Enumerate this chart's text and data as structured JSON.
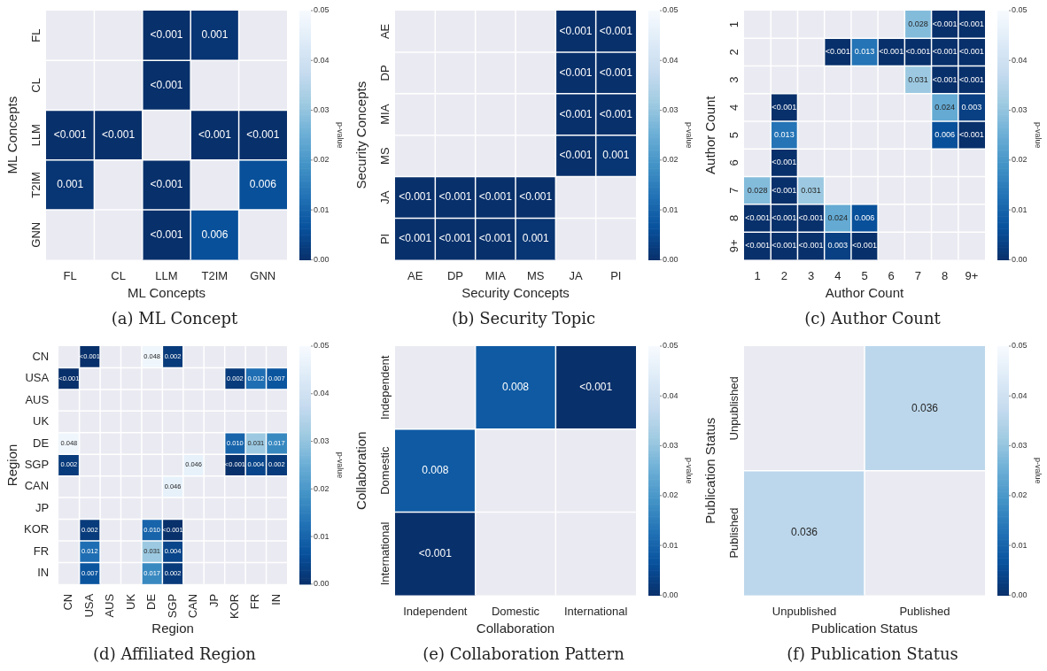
{
  "chart_data": [
    {
      "type": "heatmap",
      "title": "(a) ML Concept",
      "xlabel": "ML Concepts",
      "ylabel": "ML Concepts",
      "categories": [
        "FL",
        "CL",
        "LLM",
        "T2IM",
        "GNN"
      ],
      "y_categories": [
        "FL",
        "CL",
        "LLM",
        "T2IM",
        "GNN"
      ],
      "cells": [
        [
          null,
          null,
          0,
          0.001,
          null
        ],
        [
          null,
          null,
          0,
          null,
          null
        ],
        [
          0,
          0,
          null,
          0,
          0
        ],
        [
          0.001,
          null,
          0,
          null,
          0.006
        ],
        [
          null,
          null,
          0,
          0.006,
          null
        ]
      ],
      "cell_labels": [
        [
          null,
          null,
          "<0.001",
          "0.001",
          null
        ],
        [
          null,
          null,
          "<0.001",
          null,
          null
        ],
        [
          "<0.001",
          "<0.001",
          null,
          "<0.001",
          "<0.001"
        ],
        [
          "0.001",
          null,
          "<0.001",
          null,
          "0.006"
        ],
        [
          null,
          null,
          "<0.001",
          "0.006",
          null
        ]
      ],
      "clim": [
        0,
        0.05
      ],
      "cticks": [
        {
          "value": 0,
          "label": "0.00"
        },
        {
          "value": 0.01,
          "label": "0.01"
        },
        {
          "value": 0.02,
          "label": "0.02"
        },
        {
          "value": 0.03,
          "label": "0.03"
        },
        {
          "value": 0.04,
          "label": "0.04"
        },
        {
          "value": 0.05,
          "label": "0.05"
        }
      ],
      "clabel": "p-value"
    },
    {
      "type": "heatmap",
      "title": "(b) Security Topic",
      "xlabel": "Security Concepts",
      "ylabel": "Security Concepts",
      "categories": [
        "AE",
        "DP",
        "MIA",
        "MS",
        "JA",
        "PI"
      ],
      "y_categories": [
        "AE",
        "DP",
        "MIA",
        "MS",
        "JA",
        "PI"
      ],
      "cells": [
        [
          null,
          null,
          null,
          null,
          0,
          0
        ],
        [
          null,
          null,
          null,
          null,
          0,
          0
        ],
        [
          null,
          null,
          null,
          null,
          0,
          0
        ],
        [
          null,
          null,
          null,
          null,
          0,
          0.001
        ],
        [
          0,
          0,
          0,
          0,
          null,
          null
        ],
        [
          0,
          0,
          0,
          0.001,
          null,
          null
        ]
      ],
      "cell_labels": [
        [
          null,
          null,
          null,
          null,
          "<0.001",
          "<0.001"
        ],
        [
          null,
          null,
          null,
          null,
          "<0.001",
          "<0.001"
        ],
        [
          null,
          null,
          null,
          null,
          "<0.001",
          "<0.001"
        ],
        [
          null,
          null,
          null,
          null,
          "<0.001",
          "0.001"
        ],
        [
          "<0.001",
          "<0.001",
          "<0.001",
          "<0.001",
          null,
          null
        ],
        [
          "<0.001",
          "<0.001",
          "<0.001",
          "0.001",
          null,
          null
        ]
      ],
      "clim": [
        0,
        0.05
      ],
      "cticks": [
        {
          "value": 0,
          "label": "0.00"
        },
        {
          "value": 0.01,
          "label": "0.01"
        },
        {
          "value": 0.02,
          "label": "0.02"
        },
        {
          "value": 0.03,
          "label": "0.03"
        },
        {
          "value": 0.04,
          "label": "0.04"
        },
        {
          "value": 0.05,
          "label": "0.05"
        }
      ],
      "clabel": "p-value"
    },
    {
      "type": "heatmap",
      "title": "(c) Author Count",
      "xlabel": "Author Count",
      "ylabel": "Author Count",
      "categories": [
        "1",
        "2",
        "3",
        "4",
        "5",
        "6",
        "7",
        "8",
        "9+"
      ],
      "y_categories": [
        "1",
        "2",
        "3",
        "4",
        "5",
        "6",
        "7",
        "8",
        "9+"
      ],
      "cells": [
        [
          null,
          null,
          null,
          null,
          null,
          null,
          0.028,
          0,
          0
        ],
        [
          null,
          null,
          null,
          0,
          0.013,
          0,
          0,
          0,
          0
        ],
        [
          null,
          null,
          null,
          null,
          null,
          null,
          0.031,
          0,
          0
        ],
        [
          null,
          0,
          null,
          null,
          null,
          null,
          null,
          0.024,
          0.003
        ],
        [
          null,
          0.013,
          null,
          null,
          null,
          null,
          null,
          0.006,
          0
        ],
        [
          null,
          0,
          null,
          null,
          null,
          null,
          null,
          null,
          null
        ],
        [
          0.028,
          0,
          0.031,
          null,
          null,
          null,
          null,
          null,
          null
        ],
        [
          0,
          0,
          0,
          0.024,
          0.006,
          null,
          null,
          null,
          null
        ],
        [
          0,
          0,
          0,
          0.003,
          0,
          null,
          null,
          null,
          null
        ]
      ],
      "cell_labels": [
        [
          null,
          null,
          null,
          null,
          null,
          null,
          "0.028",
          "<0.001",
          "<0.001"
        ],
        [
          null,
          null,
          null,
          "<0.001",
          "0.013",
          "<0.001",
          "<0.001",
          "<0.001",
          "<0.001"
        ],
        [
          null,
          null,
          null,
          null,
          null,
          null,
          "0.031",
          "<0.001",
          "<0.001"
        ],
        [
          null,
          "<0.001",
          null,
          null,
          null,
          null,
          null,
          "0.024",
          "0.003"
        ],
        [
          null,
          "0.013",
          null,
          null,
          null,
          null,
          null,
          "0.006",
          "<0.001"
        ],
        [
          null,
          "<0.001",
          null,
          null,
          null,
          null,
          null,
          null,
          null
        ],
        [
          "0.028",
          "<0.001",
          "0.031",
          null,
          null,
          null,
          null,
          null,
          null
        ],
        [
          "<0.001",
          "<0.001",
          "<0.001",
          "0.024",
          "0.006",
          null,
          null,
          null,
          null
        ],
        [
          "<0.001",
          "<0.001",
          "<0.001",
          "0.003",
          "<0.001",
          null,
          null,
          null,
          null
        ]
      ],
      "clim": [
        0,
        0.05
      ],
      "cticks": [
        {
          "value": 0,
          "label": "0.00"
        },
        {
          "value": 0.01,
          "label": "0.01"
        },
        {
          "value": 0.02,
          "label": "0.02"
        },
        {
          "value": 0.03,
          "label": "0.03"
        },
        {
          "value": 0.04,
          "label": "0.04"
        },
        {
          "value": 0.05,
          "label": "0.05"
        }
      ],
      "clabel": "p-value"
    },
    {
      "type": "heatmap",
      "title": "(d) Affiliated Region",
      "xlabel": "Region",
      "ylabel": "Region",
      "categories": [
        "CN",
        "USA",
        "AUS",
        "UK",
        "DE",
        "SGP",
        "CAN",
        "JP",
        "KOR",
        "FR",
        "IN"
      ],
      "y_categories": [
        "CN",
        "USA",
        "AUS",
        "UK",
        "DE",
        "SGP",
        "CAN",
        "JP",
        "KOR",
        "FR",
        "IN"
      ],
      "cells": [
        [
          null,
          0,
          null,
          null,
          0.048,
          0.002,
          null,
          null,
          null,
          null,
          null
        ],
        [
          0,
          null,
          null,
          null,
          null,
          null,
          null,
          null,
          0.002,
          0.012,
          0.007
        ],
        [
          null,
          null,
          null,
          null,
          null,
          null,
          null,
          null,
          null,
          null,
          null
        ],
        [
          null,
          null,
          null,
          null,
          null,
          null,
          null,
          null,
          null,
          null,
          null
        ],
        [
          0.048,
          null,
          null,
          null,
          null,
          null,
          null,
          null,
          0.01,
          0.031,
          0.017
        ],
        [
          0.002,
          null,
          null,
          null,
          null,
          null,
          0.046,
          null,
          0,
          0.004,
          0.002
        ],
        [
          null,
          null,
          null,
          null,
          null,
          0.046,
          null,
          null,
          null,
          null,
          null
        ],
        [
          null,
          null,
          null,
          null,
          null,
          null,
          null,
          null,
          null,
          null,
          null
        ],
        [
          null,
          0.002,
          null,
          null,
          0.01,
          0,
          null,
          null,
          null,
          null,
          null
        ],
        [
          null,
          0.012,
          null,
          null,
          0.031,
          0.004,
          null,
          null,
          null,
          null,
          null
        ],
        [
          null,
          0.007,
          null,
          null,
          0.017,
          0.002,
          null,
          null,
          null,
          null,
          null
        ]
      ],
      "cell_labels": [
        [
          null,
          "<0.001",
          null,
          null,
          "0.048",
          "0.002",
          null,
          null,
          null,
          null,
          null
        ],
        [
          "<0.001",
          null,
          null,
          null,
          null,
          null,
          null,
          null,
          "0.002",
          "0.012",
          "0.007"
        ],
        [
          null,
          null,
          null,
          null,
          null,
          null,
          null,
          null,
          null,
          null,
          null
        ],
        [
          null,
          null,
          null,
          null,
          null,
          null,
          null,
          null,
          null,
          null,
          null
        ],
        [
          "0.048",
          null,
          null,
          null,
          null,
          null,
          null,
          null,
          "0.010",
          "0.031",
          "0.017"
        ],
        [
          "0.002",
          null,
          null,
          null,
          null,
          null,
          "0.046",
          null,
          "<0.001",
          "0.004",
          "0.002"
        ],
        [
          null,
          null,
          null,
          null,
          null,
          "0.046",
          null,
          null,
          null,
          null,
          null
        ],
        [
          null,
          null,
          null,
          null,
          null,
          null,
          null,
          null,
          null,
          null,
          null
        ],
        [
          null,
          "0.002",
          null,
          null,
          "0.010",
          "<0.001",
          null,
          null,
          null,
          null,
          null
        ],
        [
          null,
          "0.012",
          null,
          null,
          "0.031",
          "0.004",
          null,
          null,
          null,
          null,
          null
        ],
        [
          null,
          "0.007",
          null,
          null,
          "0.017",
          "0.002",
          null,
          null,
          null,
          null,
          null
        ]
      ],
      "clim": [
        0,
        0.05
      ],
      "cticks": [
        {
          "value": 0,
          "label": "0.00"
        },
        {
          "value": 0.01,
          "label": "0.01"
        },
        {
          "value": 0.02,
          "label": "0.02"
        },
        {
          "value": 0.03,
          "label": "0.03"
        },
        {
          "value": 0.04,
          "label": "0.04"
        },
        {
          "value": 0.05,
          "label": "0.05"
        }
      ],
      "clabel": "p-value"
    },
    {
      "type": "heatmap",
      "title": "(e) Collaboration Pattern",
      "xlabel": "Collaboration",
      "ylabel": "Collaboration",
      "categories": [
        "Independent",
        "Domestic",
        "International"
      ],
      "y_categories": [
        "Independent",
        "Domestic",
        "International"
      ],
      "cells": [
        [
          null,
          0.008,
          0
        ],
        [
          0.008,
          null,
          null
        ],
        [
          0,
          null,
          null
        ]
      ],
      "cell_labels": [
        [
          null,
          "0.008",
          "<0.001"
        ],
        [
          "0.008",
          null,
          null
        ],
        [
          "<0.001",
          null,
          null
        ]
      ],
      "clim": [
        0,
        0.05
      ],
      "cticks": [
        {
          "value": 0,
          "label": "0.00"
        },
        {
          "value": 0.01,
          "label": "0.01"
        },
        {
          "value": 0.02,
          "label": "0.02"
        },
        {
          "value": 0.03,
          "label": "0.03"
        },
        {
          "value": 0.04,
          "label": "0.04"
        },
        {
          "value": 0.05,
          "label": "0.05"
        }
      ],
      "clabel": "p-value"
    },
    {
      "type": "heatmap",
      "title": "(f) Publication Status",
      "xlabel": "Publication Status",
      "ylabel": "Publication Status",
      "categories": [
        "Unpublished",
        "Published"
      ],
      "y_categories": [
        "Unpublished",
        "Published"
      ],
      "cells": [
        [
          null,
          0.036
        ],
        [
          0.036,
          null
        ]
      ],
      "cell_labels": [
        [
          null,
          "0.036"
        ],
        [
          "0.036",
          null
        ]
      ],
      "clim": [
        0,
        0.05
      ],
      "cticks": [
        {
          "value": 0,
          "label": "0.00"
        },
        {
          "value": 0.01,
          "label": "0.01"
        },
        {
          "value": 0.02,
          "label": "0.02"
        },
        {
          "value": 0.03,
          "label": "0.03"
        },
        {
          "value": 0.04,
          "label": "0.04"
        },
        {
          "value": 0.05,
          "label": "0.05"
        }
      ],
      "clabel": "p-value"
    }
  ]
}
